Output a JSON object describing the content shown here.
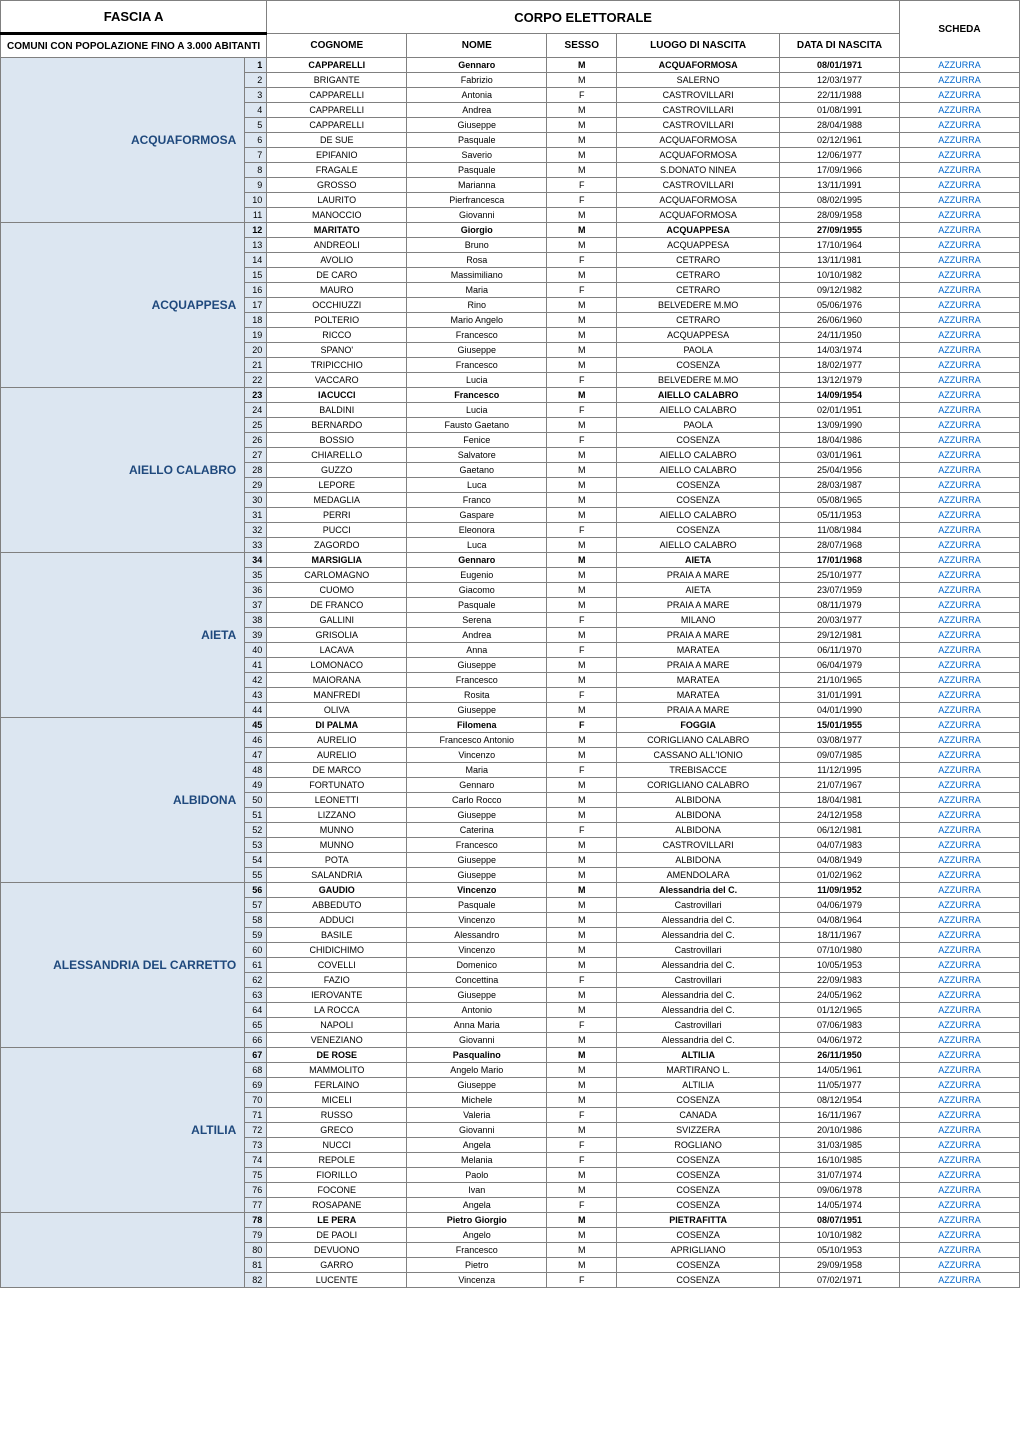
{
  "headers": {
    "fascia": "FASCIA A",
    "comuni": "COMUNI CON POPOLAZIONE FINO A 3.000 ABITANTI",
    "corpo": "CORPO ELETTORALE",
    "cognome": "COGNOME",
    "nome": "NOME",
    "sesso": "SESSO",
    "luogo": "LUOGO DI NASCITA",
    "data": "DATA DI NASCITA",
    "scheda": "SCHEDA"
  },
  "comuni": [
    {
      "name": "ACQUAFORMOSA",
      "rows": [
        {
          "n": "1",
          "c": "CAPPARELLI",
          "no": "Gennaro",
          "s": "M",
          "l": "ACQUAFORMOSA",
          "d": "08/01/1971",
          "sc": "AZZURRA",
          "b": true
        },
        {
          "n": "2",
          "c": "BRIGANTE",
          "no": "Fabrizio",
          "s": "M",
          "l": "SALERNO",
          "d": "12/03/1977",
          "sc": "AZZURRA"
        },
        {
          "n": "3",
          "c": "CAPPARELLI",
          "no": "Antonia",
          "s": "F",
          "l": "CASTROVILLARI",
          "d": "22/11/1988",
          "sc": "AZZURRA"
        },
        {
          "n": "4",
          "c": "CAPPARELLI",
          "no": "Andrea",
          "s": "M",
          "l": "CASTROVILLARI",
          "d": "01/08/1991",
          "sc": "AZZURRA"
        },
        {
          "n": "5",
          "c": "CAPPARELLI",
          "no": "Giuseppe",
          "s": "M",
          "l": "CASTROVILLARI",
          "d": "28/04/1988",
          "sc": "AZZURRA"
        },
        {
          "n": "6",
          "c": "DE SUE",
          "no": "Pasquale",
          "s": "M",
          "l": "ACQUAFORMOSA",
          "d": "02/12/1961",
          "sc": "AZZURRA"
        },
        {
          "n": "7",
          "c": "EPIFANIO",
          "no": "Saverio",
          "s": "M",
          "l": "ACQUAFORMOSA",
          "d": "12/06/1977",
          "sc": "AZZURRA"
        },
        {
          "n": "8",
          "c": "FRAGALE",
          "no": "Pasquale",
          "s": "M",
          "l": "S.DONATO NINEA",
          "d": "17/09/1966",
          "sc": "AZZURRA"
        },
        {
          "n": "9",
          "c": "GROSSO",
          "no": "Marianna",
          "s": "F",
          "l": "CASTROVILLARI",
          "d": "13/11/1991",
          "sc": "AZZURRA"
        },
        {
          "n": "10",
          "c": "LAURITO",
          "no": "Pierfrancesca",
          "s": "F",
          "l": "ACQUAFORMOSA",
          "d": "08/02/1995",
          "sc": "AZZURRA"
        },
        {
          "n": "11",
          "c": "MANOCCIO",
          "no": "Giovanni",
          "s": "M",
          "l": "ACQUAFORMOSA",
          "d": "28/09/1958",
          "sc": "AZZURRA"
        }
      ]
    },
    {
      "name": "ACQUAPPESA",
      "rows": [
        {
          "n": "12",
          "c": "MARITATO",
          "no": "Giorgio",
          "s": "M",
          "l": "ACQUAPPESA",
          "d": "27/09/1955",
          "sc": "AZZURRA",
          "b": true
        },
        {
          "n": "13",
          "c": "ANDREOLI",
          "no": "Bruno",
          "s": "M",
          "l": "ACQUAPPESA",
          "d": "17/10/1964",
          "sc": "AZZURRA"
        },
        {
          "n": "14",
          "c": "AVOLIO",
          "no": "Rosa",
          "s": "F",
          "l": "CETRARO",
          "d": "13/11/1981",
          "sc": "AZZURRA"
        },
        {
          "n": "15",
          "c": "DE CARO",
          "no": "Massimiliano",
          "s": "M",
          "l": "CETRARO",
          "d": "10/10/1982",
          "sc": "AZZURRA"
        },
        {
          "n": "16",
          "c": "MAURO",
          "no": "Maria",
          "s": "F",
          "l": "CETRARO",
          "d": "09/12/1982",
          "sc": "AZZURRA"
        },
        {
          "n": "17",
          "c": "OCCHIUZZI",
          "no": "Rino",
          "s": "M",
          "l": "BELVEDERE M.MO",
          "d": "05/06/1976",
          "sc": "AZZURRA"
        },
        {
          "n": "18",
          "c": "POLTERIO",
          "no": "Mario Angelo",
          "s": "M",
          "l": "CETRARO",
          "d": "26/06/1960",
          "sc": "AZZURRA"
        },
        {
          "n": "19",
          "c": "RICCO",
          "no": "Francesco",
          "s": "M",
          "l": "ACQUAPPESA",
          "d": "24/11/1950",
          "sc": "AZZURRA"
        },
        {
          "n": "20",
          "c": "SPANO'",
          "no": "Giuseppe",
          "s": "M",
          "l": "PAOLA",
          "d": "14/03/1974",
          "sc": "AZZURRA"
        },
        {
          "n": "21",
          "c": "TRIPICCHIO",
          "no": "Francesco",
          "s": "M",
          "l": "COSENZA",
          "d": "18/02/1977",
          "sc": "AZZURRA"
        },
        {
          "n": "22",
          "c": "VACCARO",
          "no": "Lucia",
          "s": "F",
          "l": "BELVEDERE M.MO",
          "d": "13/12/1979",
          "sc": "AZZURRA"
        }
      ]
    },
    {
      "name": "AIELLO CALABRO",
      "rows": [
        {
          "n": "23",
          "c": "IACUCCI",
          "no": "Francesco",
          "s": "M",
          "l": "AIELLO CALABRO",
          "d": "14/09/1954",
          "sc": "AZZURRA",
          "b": true
        },
        {
          "n": "24",
          "c": "BALDINI",
          "no": "Lucia",
          "s": "F",
          "l": "AIELLO CALABRO",
          "d": "02/01/1951",
          "sc": "AZZURRA"
        },
        {
          "n": "25",
          "c": "BERNARDO",
          "no": "Fausto Gaetano",
          "s": "M",
          "l": "PAOLA",
          "d": "13/09/1990",
          "sc": "AZZURRA"
        },
        {
          "n": "26",
          "c": "BOSSIO",
          "no": "Fenice",
          "s": "F",
          "l": "COSENZA",
          "d": "18/04/1986",
          "sc": "AZZURRA"
        },
        {
          "n": "27",
          "c": "CHIARELLO",
          "no": "Salvatore",
          "s": "M",
          "l": "AIELLO CALABRO",
          "d": "03/01/1961",
          "sc": "AZZURRA"
        },
        {
          "n": "28",
          "c": "GUZZO",
          "no": "Gaetano",
          "s": "M",
          "l": "AIELLO CALABRO",
          "d": "25/04/1956",
          "sc": "AZZURRA"
        },
        {
          "n": "29",
          "c": "LEPORE",
          "no": "Luca",
          "s": "M",
          "l": "COSENZA",
          "d": "28/03/1987",
          "sc": "AZZURRA"
        },
        {
          "n": "30",
          "c": "MEDAGLIA",
          "no": "Franco",
          "s": "M",
          "l": "COSENZA",
          "d": "05/08/1965",
          "sc": "AZZURRA"
        },
        {
          "n": "31",
          "c": "PERRI",
          "no": "Gaspare",
          "s": "M",
          "l": "AIELLO CALABRO",
          "d": "05/11/1953",
          "sc": "AZZURRA"
        },
        {
          "n": "32",
          "c": "PUCCI",
          "no": "Eleonora",
          "s": "F",
          "l": "COSENZA",
          "d": "11/08/1984",
          "sc": "AZZURRA"
        },
        {
          "n": "33",
          "c": "ZAGORDO",
          "no": "Luca",
          "s": "M",
          "l": "AIELLO CALABRO",
          "d": "28/07/1968",
          "sc": "AZZURRA"
        }
      ]
    },
    {
      "name": "AIETA",
      "rows": [
        {
          "n": "34",
          "c": "MARSIGLIA",
          "no": "Gennaro",
          "s": "M",
          "l": "AIETA",
          "d": "17/01/1968",
          "sc": "AZZURRA",
          "b": true
        },
        {
          "n": "35",
          "c": "CARLOMAGNO",
          "no": "Eugenio",
          "s": "M",
          "l": "PRAIA A MARE",
          "d": "25/10/1977",
          "sc": "AZZURRA"
        },
        {
          "n": "36",
          "c": "CUOMO",
          "no": "Giacomo",
          "s": "M",
          "l": "AIETA",
          "d": "23/07/1959",
          "sc": "AZZURRA"
        },
        {
          "n": "37",
          "c": "DE FRANCO",
          "no": "Pasquale",
          "s": "M",
          "l": "PRAIA A MARE",
          "d": "08/11/1979",
          "sc": "AZZURRA"
        },
        {
          "n": "38",
          "c": "GALLINI",
          "no": "Serena",
          "s": "F",
          "l": "MILANO",
          "d": "20/03/1977",
          "sc": "AZZURRA"
        },
        {
          "n": "39",
          "c": "GRISOLIA",
          "no": "Andrea",
          "s": "M",
          "l": "PRAIA A MARE",
          "d": "29/12/1981",
          "sc": "AZZURRA"
        },
        {
          "n": "40",
          "c": "LACAVA",
          "no": "Anna",
          "s": "F",
          "l": "MARATEA",
          "d": "06/11/1970",
          "sc": "AZZURRA"
        },
        {
          "n": "41",
          "c": "LOMONACO",
          "no": "Giuseppe",
          "s": "M",
          "l": "PRAIA A MARE",
          "d": "06/04/1979",
          "sc": "AZZURRA"
        },
        {
          "n": "42",
          "c": "MAIORANA",
          "no": "Francesco",
          "s": "M",
          "l": "MARATEA",
          "d": "21/10/1965",
          "sc": "AZZURRA"
        },
        {
          "n": "43",
          "c": "MANFREDI",
          "no": "Rosita",
          "s": "F",
          "l": "MARATEA",
          "d": "31/01/1991",
          "sc": "AZZURRA"
        },
        {
          "n": "44",
          "c": "OLIVA",
          "no": "Giuseppe",
          "s": "M",
          "l": "PRAIA A MARE",
          "d": "04/01/1990",
          "sc": "AZZURRA"
        }
      ]
    },
    {
      "name": "ALBIDONA",
      "rows": [
        {
          "n": "45",
          "c": "DI PALMA",
          "no": "Filomena",
          "s": "F",
          "l": "FOGGIA",
          "d": "15/01/1955",
          "sc": "AZZURRA",
          "b": true
        },
        {
          "n": "46",
          "c": "AURELIO",
          "no": "Francesco Antonio",
          "s": "M",
          "l": "CORIGLIANO CALABRO",
          "d": "03/08/1977",
          "sc": "AZZURRA"
        },
        {
          "n": "47",
          "c": "AURELIO",
          "no": "Vincenzo",
          "s": "M",
          "l": "CASSANO ALL'IONIO",
          "d": "09/07/1985",
          "sc": "AZZURRA"
        },
        {
          "n": "48",
          "c": "DE MARCO",
          "no": "Maria",
          "s": "F",
          "l": "TREBISACCE",
          "d": "11/12/1995",
          "sc": "AZZURRA"
        },
        {
          "n": "49",
          "c": "FORTUNATO",
          "no": "Gennaro",
          "s": "M",
          "l": "CORIGLIANO CALABRO",
          "d": "21/07/1967",
          "sc": "AZZURRA"
        },
        {
          "n": "50",
          "c": "LEONETTI",
          "no": "Carlo Rocco",
          "s": "M",
          "l": "ALBIDONA",
          "d": "18/04/1981",
          "sc": "AZZURRA"
        },
        {
          "n": "51",
          "c": "LIZZANO",
          "no": "Giuseppe",
          "s": "M",
          "l": "ALBIDONA",
          "d": "24/12/1958",
          "sc": "AZZURRA"
        },
        {
          "n": "52",
          "c": "MUNNO",
          "no": "Caterina",
          "s": "F",
          "l": "ALBIDONA",
          "d": "06/12/1981",
          "sc": "AZZURRA"
        },
        {
          "n": "53",
          "c": "MUNNO",
          "no": "Francesco",
          "s": "M",
          "l": "CASTROVILLARI",
          "d": "04/07/1983",
          "sc": "AZZURRA"
        },
        {
          "n": "54",
          "c": "POTA",
          "no": "Giuseppe",
          "s": "M",
          "l": "ALBIDONA",
          "d": "04/08/1949",
          "sc": "AZZURRA"
        },
        {
          "n": "55",
          "c": "SALANDRIA",
          "no": "Giuseppe",
          "s": "M",
          "l": "AMENDOLARA",
          "d": "01/02/1962",
          "sc": "AZZURRA"
        }
      ]
    },
    {
      "name": "ALESSANDRIA DEL CARRETTO",
      "rows": [
        {
          "n": "56",
          "c": "GAUDIO",
          "no": "Vincenzo",
          "s": "M",
          "l": "Alessandria del C.",
          "d": "11/09/1952",
          "sc": "AZZURRA",
          "b": true
        },
        {
          "n": "57",
          "c": "ABBEDUTO",
          "no": "Pasquale",
          "s": "M",
          "l": "Castrovillari",
          "d": "04/06/1979",
          "sc": "AZZURRA"
        },
        {
          "n": "58",
          "c": "ADDUCI",
          "no": "Vincenzo",
          "s": "M",
          "l": "Alessandria del C.",
          "d": "04/08/1964",
          "sc": "AZZURRA"
        },
        {
          "n": "59",
          "c": "BASILE",
          "no": "Alessandro",
          "s": "M",
          "l": "Alessandria del C.",
          "d": "18/11/1967",
          "sc": "AZZURRA"
        },
        {
          "n": "60",
          "c": "CHIDICHIMO",
          "no": "Vincenzo",
          "s": "M",
          "l": "Castrovillari",
          "d": "07/10/1980",
          "sc": "AZZURRA"
        },
        {
          "n": "61",
          "c": "COVELLI",
          "no": "Domenico",
          "s": "M",
          "l": "Alessandria del C.",
          "d": "10/05/1953",
          "sc": "AZZURRA"
        },
        {
          "n": "62",
          "c": "FAZIO",
          "no": "Concettina",
          "s": "F",
          "l": "Castrovillari",
          "d": "22/09/1983",
          "sc": "AZZURRA"
        },
        {
          "n": "63",
          "c": "IEROVANTE",
          "no": "Giuseppe",
          "s": "M",
          "l": "Alessandria del C.",
          "d": "24/05/1962",
          "sc": "AZZURRA"
        },
        {
          "n": "64",
          "c": "LA ROCCA",
          "no": "Antonio",
          "s": "M",
          "l": "Alessandria del C.",
          "d": "01/12/1965",
          "sc": "AZZURRA"
        },
        {
          "n": "65",
          "c": "NAPOLI",
          "no": "Anna Maria",
          "s": "F",
          "l": "Castrovillari",
          "d": "07/06/1983",
          "sc": "AZZURRA"
        },
        {
          "n": "66",
          "c": "VENEZIANO",
          "no": "Giovanni",
          "s": "M",
          "l": "Alessandria del C.",
          "d": "04/06/1972",
          "sc": "AZZURRA"
        }
      ]
    },
    {
      "name": "ALTILIA",
      "rows": [
        {
          "n": "67",
          "c": "DE ROSE",
          "no": "Pasqualino",
          "s": "M",
          "l": "ALTILIA",
          "d": "26/11/1950",
          "sc": "AZZURRA",
          "b": true
        },
        {
          "n": "68",
          "c": "MAMMOLITO",
          "no": "Angelo Mario",
          "s": "M",
          "l": "MARTIRANO L.",
          "d": "14/05/1961",
          "sc": "AZZURRA"
        },
        {
          "n": "69",
          "c": "FERLAINO",
          "no": "Giuseppe",
          "s": "M",
          "l": "ALTILIA",
          "d": "11/05/1977",
          "sc": "AZZURRA"
        },
        {
          "n": "70",
          "c": "MICELI",
          "no": "Michele",
          "s": "M",
          "l": "COSENZA",
          "d": "08/12/1954",
          "sc": "AZZURRA"
        },
        {
          "n": "71",
          "c": "RUSSO",
          "no": "Valeria",
          "s": "F",
          "l": "CANADA",
          "d": "16/11/1967",
          "sc": "AZZURRA"
        },
        {
          "n": "72",
          "c": "GRECO",
          "no": "Giovanni",
          "s": "M",
          "l": "SVIZZERA",
          "d": "20/10/1986",
          "sc": "AZZURRA"
        },
        {
          "n": "73",
          "c": "NUCCI",
          "no": "Angela",
          "s": "F",
          "l": "ROGLIANO",
          "d": "31/03/1985",
          "sc": "AZZURRA"
        },
        {
          "n": "74",
          "c": "REPOLE",
          "no": "Melania",
          "s": "F",
          "l": "COSENZA",
          "d": "16/10/1985",
          "sc": "AZZURRA"
        },
        {
          "n": "75",
          "c": "FIORILLO",
          "no": "Paolo",
          "s": "M",
          "l": "COSENZA",
          "d": "31/07/1974",
          "sc": "AZZURRA"
        },
        {
          "n": "76",
          "c": "FOCONE",
          "no": "Ivan",
          "s": "M",
          "l": "COSENZA",
          "d": "09/06/1978",
          "sc": "AZZURRA"
        },
        {
          "n": "77",
          "c": "ROSAPANE",
          "no": "Angela",
          "s": "F",
          "l": "COSENZA",
          "d": "14/05/1974",
          "sc": "AZZURRA"
        }
      ]
    },
    {
      "name": "",
      "rows": [
        {
          "n": "78",
          "c": "LE PERA",
          "no": "Pietro Giorgio",
          "s": "M",
          "l": "PIETRAFITTA",
          "d": "08/07/1951",
          "sc": "AZZURRA",
          "b": true
        },
        {
          "n": "79",
          "c": "DE PAOLI",
          "no": "Angelo",
          "s": "M",
          "l": "COSENZA",
          "d": "10/10/1982",
          "sc": "AZZURRA"
        },
        {
          "n": "80",
          "c": "DEVUONO",
          "no": "Francesco",
          "s": "M",
          "l": "APRIGLIANO",
          "d": "05/10/1953",
          "sc": "AZZURRA"
        },
        {
          "n": "81",
          "c": "GARRO",
          "no": "Pietro",
          "s": "M",
          "l": "COSENZA",
          "d": "29/09/1958",
          "sc": "AZZURRA"
        },
        {
          "n": "82",
          "c": "LUCENTE",
          "no": "Vincenza",
          "s": "F",
          "l": "COSENZA",
          "d": "07/02/1971",
          "sc": "AZZURRA"
        }
      ]
    }
  ],
  "styling": {
    "comune_bg": "#dce6f1",
    "comune_text": "#1f497d",
    "scheda_text": "#0066cc",
    "border_color": "#808080",
    "font_family": "Arial, sans-serif",
    "header_fontsize": 13,
    "subheader_fontsize": 10,
    "cell_fontsize": 9,
    "comune_fontsize": 12
  }
}
